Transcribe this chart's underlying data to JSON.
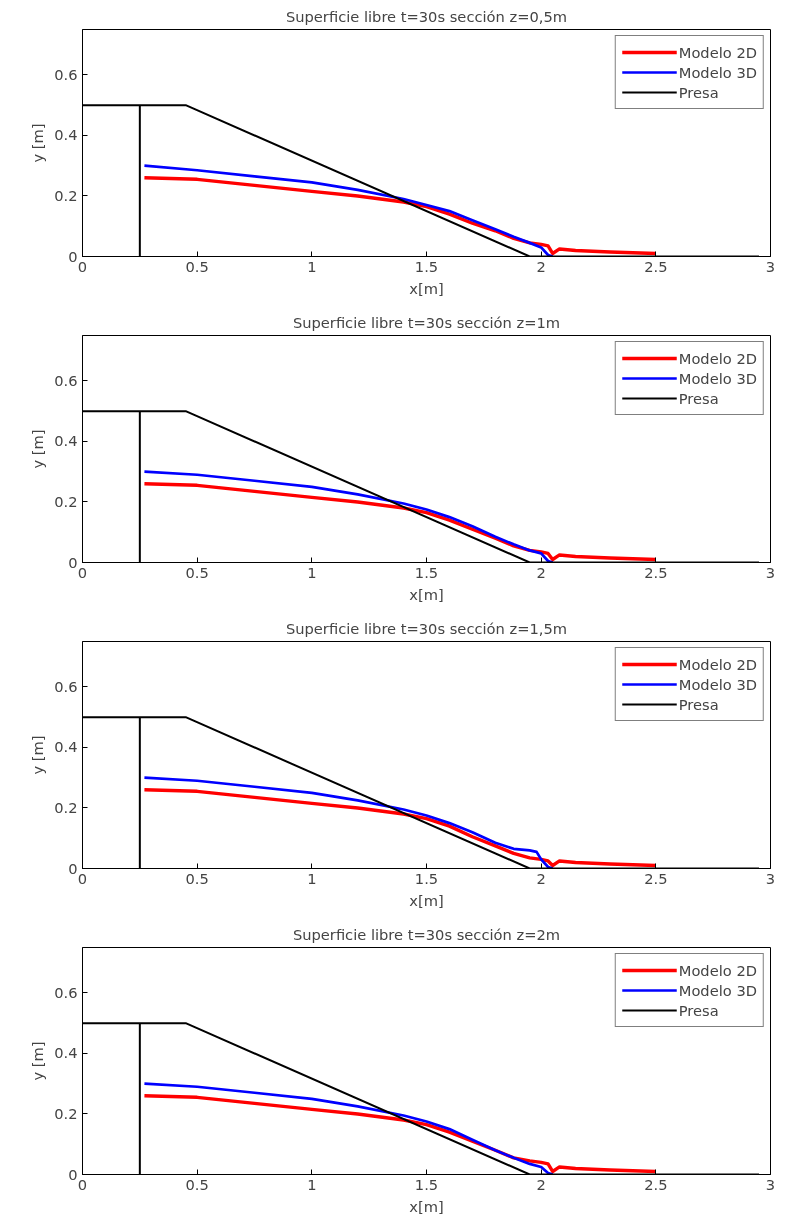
{
  "chart_data": [
    {
      "type": "line",
      "title": "Superficie libre t=30s sección z=0,5m",
      "xlabel": "x[m]",
      "ylabel": "y [m]",
      "xlim": [
        0,
        3
      ],
      "ylim": [
        0,
        0.75
      ],
      "xticks": [
        0,
        0.5,
        1,
        1.5,
        2,
        2.5,
        3
      ],
      "yticks": [
        0,
        0.2,
        0.4,
        0.6
      ],
      "legend": "top right",
      "series": [
        {
          "name": "Modelo 2D",
          "color": "#ff0000",
          "x": [
            0.27,
            0.5,
            0.75,
            1.0,
            1.2,
            1.4,
            1.5,
            1.6,
            1.7,
            1.8,
            1.88,
            1.95,
            2.0,
            2.03,
            2.05,
            2.08,
            2.15,
            2.3,
            2.5
          ],
          "values": [
            0.26,
            0.255,
            0.235,
            0.215,
            0.2,
            0.18,
            0.165,
            0.14,
            0.11,
            0.085,
            0.06,
            0.045,
            0.04,
            0.035,
            0.01,
            0.025,
            0.02,
            0.015,
            0.01
          ]
        },
        {
          "name": "Modelo 3D",
          "color": "#0000ff",
          "x": [
            0.27,
            0.5,
            0.75,
            1.0,
            1.2,
            1.4,
            1.5,
            1.6,
            1.7,
            1.8,
            1.88,
            1.95,
            2.0,
            2.03,
            2.05
          ],
          "values": [
            0.3,
            0.285,
            0.265,
            0.245,
            0.22,
            0.19,
            0.17,
            0.15,
            0.12,
            0.09,
            0.065,
            0.045,
            0.03,
            0.005,
            0.0
          ]
        },
        {
          "name": "Presa",
          "color": "#000000",
          "x": [
            0.25,
            0.25,
            0,
            0.45,
            1.95,
            2.95
          ],
          "values": [
            0,
            0.5,
            0.5,
            0.5,
            0,
            0
          ]
        }
      ]
    },
    {
      "type": "line",
      "title": "Superficie libre t=30s sección z=1m",
      "xlabel": "x[m]",
      "ylabel": "y [m]",
      "xlim": [
        0,
        3
      ],
      "ylim": [
        0,
        0.75
      ],
      "xticks": [
        0,
        0.5,
        1,
        1.5,
        2,
        2.5,
        3
      ],
      "yticks": [
        0,
        0.2,
        0.4,
        0.6
      ],
      "legend": "top right",
      "series": [
        {
          "name": "Modelo 2D",
          "color": "#ff0000",
          "x": [
            0.27,
            0.5,
            0.75,
            1.0,
            1.2,
            1.4,
            1.5,
            1.6,
            1.7,
            1.8,
            1.88,
            1.95,
            2.0,
            2.03,
            2.05,
            2.08,
            2.15,
            2.3,
            2.5
          ],
          "values": [
            0.26,
            0.255,
            0.235,
            0.215,
            0.2,
            0.18,
            0.165,
            0.14,
            0.11,
            0.08,
            0.055,
            0.04,
            0.035,
            0.03,
            0.01,
            0.025,
            0.02,
            0.015,
            0.01
          ]
        },
        {
          "name": "Modelo 3D",
          "color": "#0000ff",
          "x": [
            0.27,
            0.5,
            0.75,
            1.0,
            1.2,
            1.4,
            1.5,
            1.6,
            1.7,
            1.8,
            1.88,
            1.95,
            2.0,
            2.03,
            2.05
          ],
          "values": [
            0.3,
            0.29,
            0.27,
            0.25,
            0.225,
            0.195,
            0.175,
            0.15,
            0.12,
            0.085,
            0.06,
            0.04,
            0.03,
            0.005,
            0.0
          ]
        },
        {
          "name": "Presa",
          "color": "#000000",
          "x": [
            0.25,
            0.25,
            0,
            0.45,
            1.95,
            2.95
          ],
          "values": [
            0,
            0.5,
            0.5,
            0.5,
            0,
            0
          ]
        }
      ]
    },
    {
      "type": "line",
      "title": "Superficie libre t=30s sección z=1,5m",
      "xlabel": "x[m]",
      "ylabel": "y [m]",
      "xlim": [
        0,
        3
      ],
      "ylim": [
        0,
        0.75
      ],
      "xticks": [
        0,
        0.5,
        1,
        1.5,
        2,
        2.5,
        3
      ],
      "yticks": [
        0,
        0.2,
        0.4,
        0.6
      ],
      "legend": "top right",
      "series": [
        {
          "name": "Modelo 2D",
          "color": "#ff0000",
          "x": [
            0.27,
            0.5,
            0.75,
            1.0,
            1.2,
            1.4,
            1.5,
            1.6,
            1.7,
            1.8,
            1.88,
            1.95,
            2.0,
            2.03,
            2.05,
            2.08,
            2.15,
            2.3,
            2.5
          ],
          "values": [
            0.26,
            0.255,
            0.235,
            0.215,
            0.2,
            0.18,
            0.165,
            0.14,
            0.105,
            0.075,
            0.05,
            0.035,
            0.03,
            0.025,
            0.01,
            0.025,
            0.02,
            0.015,
            0.01
          ]
        },
        {
          "name": "Modelo 3D",
          "color": "#0000ff",
          "x": [
            0.27,
            0.5,
            0.75,
            1.0,
            1.2,
            1.4,
            1.5,
            1.6,
            1.7,
            1.8,
            1.88,
            1.95,
            1.98,
            2.0,
            2.03,
            2.05
          ],
          "values": [
            0.3,
            0.29,
            0.27,
            0.25,
            0.225,
            0.195,
            0.175,
            0.15,
            0.12,
            0.085,
            0.065,
            0.06,
            0.055,
            0.03,
            0.005,
            0.0
          ]
        },
        {
          "name": "Presa",
          "color": "#000000",
          "x": [
            0.25,
            0.25,
            0,
            0.45,
            1.95,
            2.95
          ],
          "values": [
            0,
            0.5,
            0.5,
            0.5,
            0,
            0
          ]
        }
      ]
    },
    {
      "type": "line",
      "title": "Superficie libre t=30s sección z=2m",
      "xlabel": "x[m]",
      "ylabel": "y [m]",
      "xlim": [
        0,
        3
      ],
      "ylim": [
        0,
        0.75
      ],
      "xticks": [
        0,
        0.5,
        1,
        1.5,
        2,
        2.5,
        3
      ],
      "yticks": [
        0,
        0.2,
        0.4,
        0.6
      ],
      "legend": "top right",
      "series": [
        {
          "name": "Modelo 2D",
          "color": "#ff0000",
          "x": [
            0.27,
            0.5,
            0.75,
            1.0,
            1.2,
            1.4,
            1.5,
            1.6,
            1.7,
            1.8,
            1.88,
            1.95,
            2.0,
            2.03,
            2.05,
            2.08,
            2.15,
            2.3,
            2.5
          ],
          "values": [
            0.26,
            0.255,
            0.235,
            0.215,
            0.2,
            0.18,
            0.165,
            0.14,
            0.11,
            0.08,
            0.055,
            0.045,
            0.04,
            0.035,
            0.01,
            0.025,
            0.02,
            0.015,
            0.01
          ]
        },
        {
          "name": "Modelo 3D",
          "color": "#0000ff",
          "x": [
            0.27,
            0.5,
            0.75,
            1.0,
            1.2,
            1.4,
            1.5,
            1.6,
            1.7,
            1.8,
            1.88,
            1.95,
            2.0,
            2.03,
            2.05
          ],
          "values": [
            0.3,
            0.29,
            0.27,
            0.25,
            0.225,
            0.195,
            0.175,
            0.15,
            0.115,
            0.08,
            0.055,
            0.035,
            0.025,
            0.005,
            0.0
          ]
        },
        {
          "name": "Presa",
          "color": "#000000",
          "x": [
            0.25,
            0.25,
            0,
            0.45,
            1.95,
            2.95
          ],
          "values": [
            0,
            0.5,
            0.5,
            0.5,
            0,
            0
          ]
        }
      ]
    }
  ]
}
